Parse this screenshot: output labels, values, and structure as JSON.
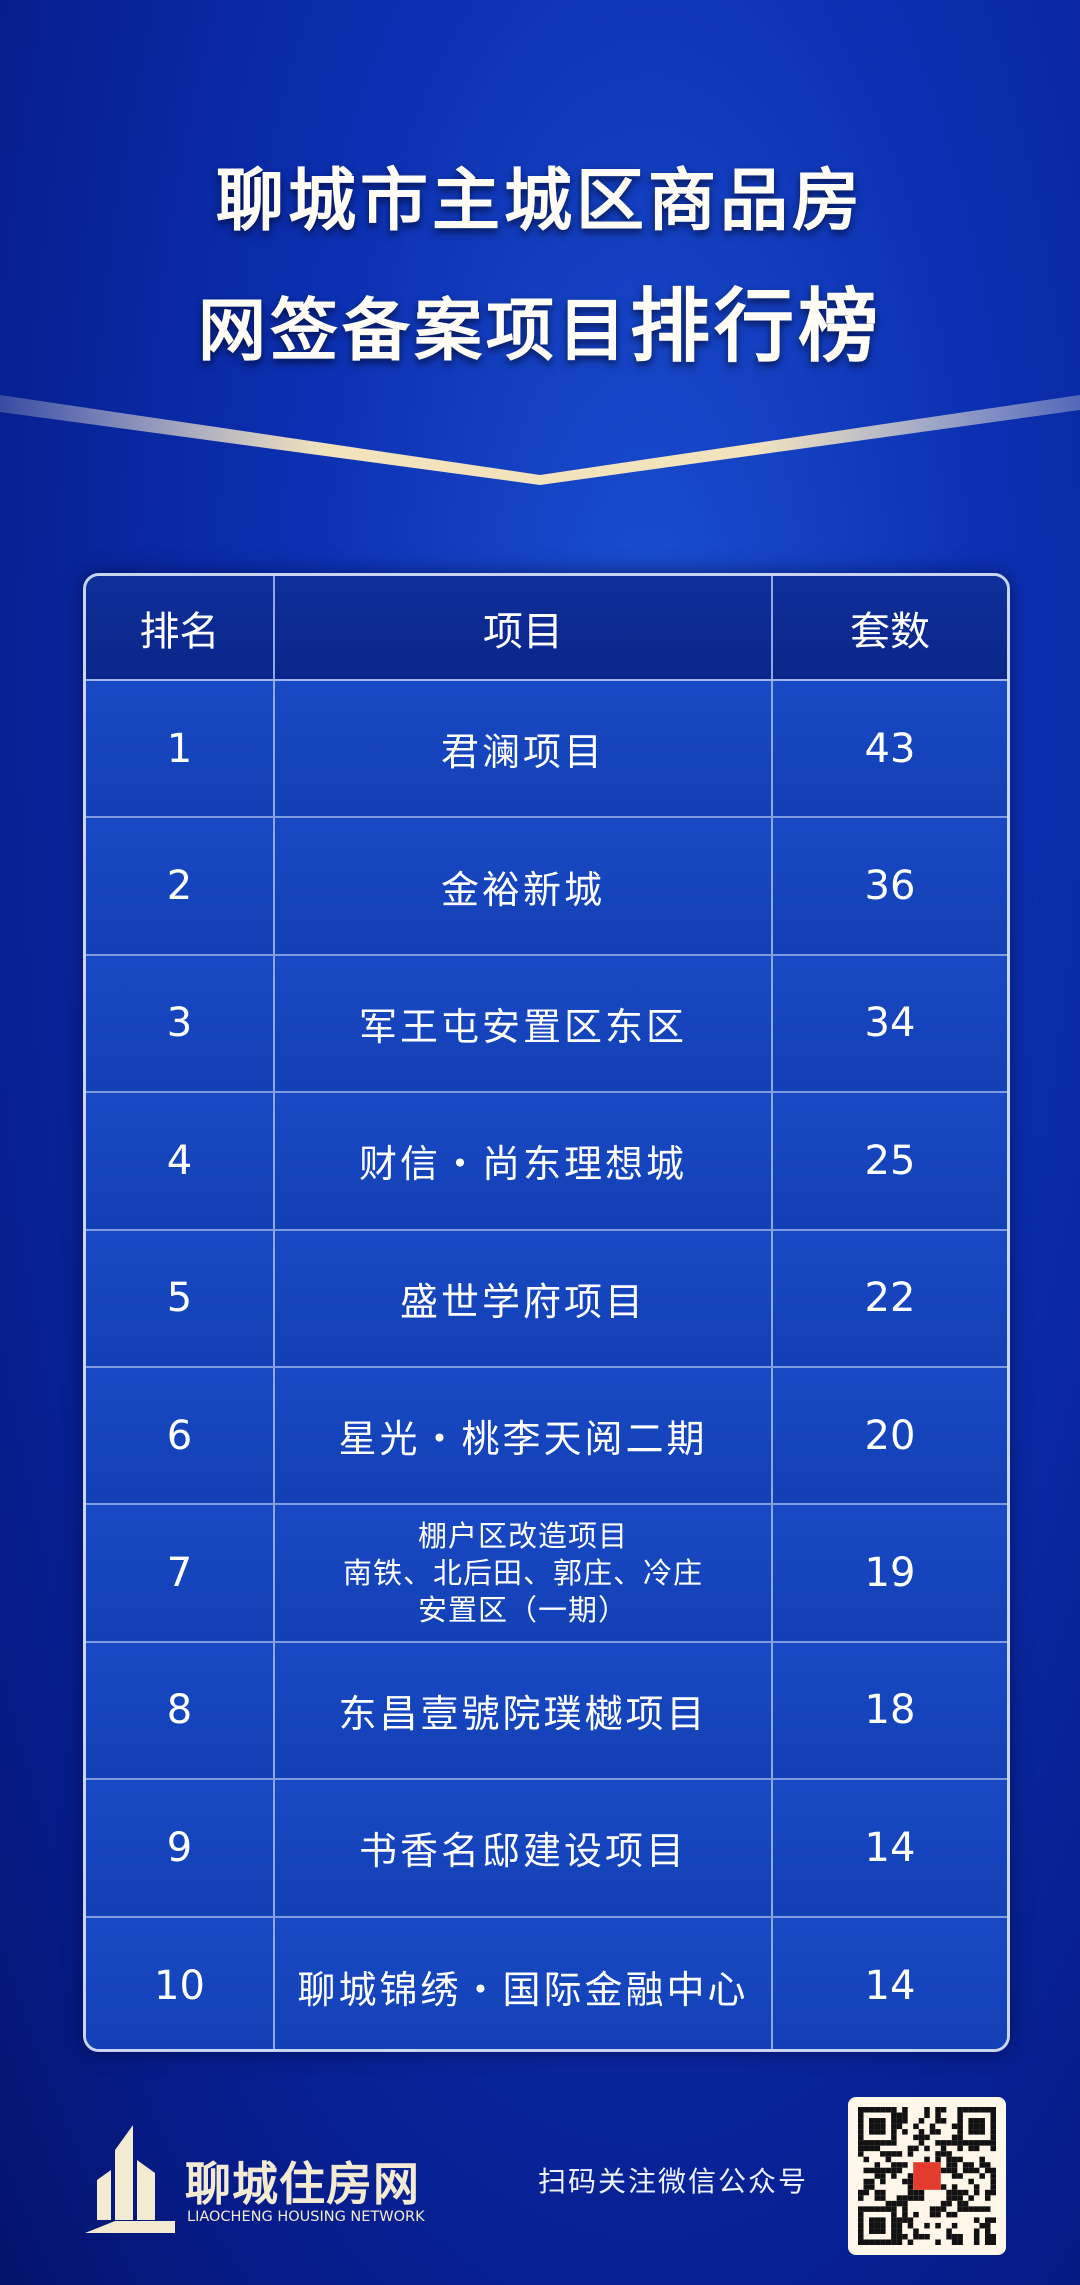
{
  "title": {
    "line1": "聊城市主城区商品房",
    "line2_a": "网签备案项目",
    "line2_b": "排行榜"
  },
  "table": {
    "headers": [
      "排名",
      "项目",
      "套数"
    ],
    "rows": [
      {
        "rank": "1",
        "project": "君澜项目",
        "count": "43"
      },
      {
        "rank": "2",
        "project": "金裕新城",
        "count": "36"
      },
      {
        "rank": "3",
        "project": "军王屯安置区东区",
        "count": "34"
      },
      {
        "rank": "4",
        "project": "财信・尚东理想城",
        "count": "25"
      },
      {
        "rank": "5",
        "project": "盛世学府项目",
        "count": "22"
      },
      {
        "rank": "6",
        "project": "星光・桃李天阅二期",
        "count": "20"
      },
      {
        "rank": "7",
        "project_lines": [
          "棚户区改造项目",
          "南铁、北后田、郭庄、冷庄",
          "安置区（一期）"
        ],
        "count": "19"
      },
      {
        "rank": "8",
        "project": "东昌壹號院璞樾项目",
        "count": "18"
      },
      {
        "rank": "9",
        "project": "书香名邸建设项目",
        "count": "14"
      },
      {
        "rank": "10",
        "project": "聊城锦绣・国际金融中心",
        "count": "14"
      }
    ]
  },
  "footer": {
    "logo_name": "聊城住房网",
    "logo_en": "LIAOCHENG HOUSING NETWORK",
    "scan_text": "扫码关注微信公众号",
    "qr_icon": "qr-code"
  },
  "colors": {
    "gold": "#e8d9b0",
    "background": "#0b2fb0"
  }
}
